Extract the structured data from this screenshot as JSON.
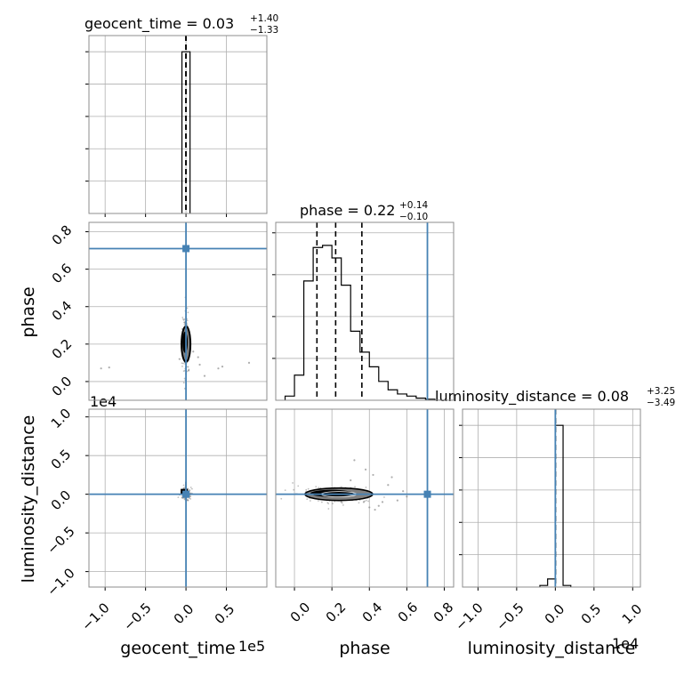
{
  "figure": {
    "style": {
      "panel_frame_color": "#8c8c8c",
      "grid_color": "#b0b0b0",
      "hist_color": "#000000",
      "truth_color": "#4682b4",
      "sample_color": "#8c8c8c",
      "contour_fill": "#808080"
    }
  },
  "chart_data": [
    {
      "type": "histogram",
      "panel": "geocent_time (1D marginal)",
      "title": {
        "prefix": "geocent_time = ",
        "median": "0.03",
        "plus": "+1.40",
        "minus": "−1.33"
      },
      "x_range": [
        -120000,
        100000
      ],
      "x_ticks": [
        -100000,
        -50000,
        0,
        50000
      ],
      "bin_edges": [
        -5000,
        5000
      ],
      "counts": [
        1.0
      ],
      "y_range": [
        0,
        1.1
      ],
      "y_ticks": [
        0.2,
        0.4,
        0.6,
        0.8,
        1.0
      ],
      "quantile_lines": [
        -1.33,
        0.03,
        1.4
      ],
      "grid": true
    },
    {
      "type": "scatter",
      "panel": "phase vs geocent_time",
      "x_range": [
        -120000,
        100000
      ],
      "y_range": [
        -0.1,
        0.85
      ],
      "y_axis": {
        "label": "phase",
        "ticks": [
          0.0,
          0.2,
          0.4,
          0.6,
          0.8
        ],
        "tick_labels": [
          "0.0",
          "0.2",
          "0.4",
          "0.6",
          "0.8"
        ]
      },
      "density_center": {
        "x": 0,
        "y": 0.2
      },
      "outliers": [
        [
          -105000,
          0.07
        ],
        [
          -95000,
          0.075
        ],
        [
          15000,
          0.13
        ],
        [
          17000,
          0.09
        ],
        [
          23000,
          0.03
        ],
        [
          40000,
          0.07
        ],
        [
          45000,
          0.08
        ],
        [
          78000,
          0.1
        ],
        [
          -8000,
          0.12
        ],
        [
          9000,
          0.16
        ]
      ],
      "truth": {
        "x": 0,
        "y": 0.71
      },
      "grid": true
    },
    {
      "type": "histogram",
      "panel": "phase (1D marginal)",
      "title": {
        "prefix": "phase = ",
        "median": "0.22",
        "plus": "+0.14",
        "minus": "−0.10"
      },
      "x_range": [
        -0.1,
        0.85
      ],
      "bin_edges": [
        -0.05,
        0.0,
        0.05,
        0.1,
        0.15,
        0.2,
        0.25,
        0.3,
        0.35,
        0.4,
        0.45,
        0.5,
        0.55,
        0.6,
        0.65,
        0.7,
        0.75,
        0.8
      ],
      "counts": [
        0.02,
        0.12,
        0.57,
        0.73,
        0.74,
        0.68,
        0.55,
        0.33,
        0.23,
        0.16,
        0.09,
        0.05,
        0.03,
        0.02,
        0.01,
        0.005,
        0.0
      ],
      "y_range": [
        0,
        0.85
      ],
      "y_ticks": [
        0.2,
        0.4,
        0.6,
        0.8
      ],
      "quantile_lines": [
        0.12,
        0.22,
        0.36
      ],
      "truth": {
        "x": 0.71
      },
      "grid": true
    },
    {
      "type": "scatter",
      "panel": "luminosity_distance vs geocent_time",
      "x_range": [
        -120000,
        100000
      ],
      "x_axis": {
        "label": "geocent_time",
        "offset_text": "1e5",
        "ticks": [
          -100000,
          -50000,
          0,
          50000
        ],
        "tick_labels": [
          "−1.0",
          "−0.5",
          "0.0",
          "0.5"
        ]
      },
      "y_range": [
        -12000,
        11000
      ],
      "y_axis": {
        "label": "luminosity_distance",
        "offset_text": "1e4",
        "ticks": [
          -10000,
          -5000,
          0,
          5000,
          10000
        ],
        "tick_labels": [
          "−1.0",
          "−0.5",
          "0.0",
          "0.5",
          "1.0"
        ]
      },
      "density_center": {
        "x": 0,
        "y": 0
      },
      "truth": {
        "x": 0,
        "y": 0
      },
      "grid": true
    },
    {
      "type": "scatter",
      "panel": "luminosity_distance vs phase",
      "x_range": [
        -0.1,
        0.85
      ],
      "x_axis": {
        "label": "phase",
        "ticks": [
          0.0,
          0.2,
          0.4,
          0.6,
          0.8
        ],
        "tick_labels": [
          "0.0",
          "0.2",
          "0.4",
          "0.6",
          "0.8"
        ]
      },
      "y_range": [
        -12000,
        11000
      ],
      "density_center": {
        "x": 0.18,
        "y": 0
      },
      "outliers": [
        [
          0.3,
          800
        ],
        [
          0.33,
          500
        ],
        [
          0.32,
          4400
        ],
        [
          0.3,
          1800
        ],
        [
          0.42,
          2500
        ],
        [
          0.43,
          -2000
        ],
        [
          0.45,
          -1500
        ],
        [
          0.4,
          -1700
        ],
        [
          0.47,
          -1000
        ],
        [
          0.37,
          -1000
        ],
        [
          0.55,
          -800
        ],
        [
          0.52,
          2200
        ],
        [
          0.5,
          1200
        ],
        [
          0.6,
          -300
        ],
        [
          0.58,
          400
        ],
        [
          0.38,
          3200
        ],
        [
          0.25,
          -1000
        ]
      ],
      "truth": {
        "x": 0.71,
        "y": 0
      },
      "grid": true
    },
    {
      "type": "histogram",
      "panel": "luminosity_distance (1D marginal)",
      "title": {
        "prefix": "luminosity_distance = ",
        "median": "0.08",
        "plus": "+3.25",
        "minus": "−3.49"
      },
      "x_range": [
        -12000,
        11000
      ],
      "x_axis": {
        "label": "luminosity_distance",
        "offset_text": "1e4",
        "ticks": [
          -10000,
          -5000,
          0,
          5000,
          10000
        ],
        "tick_labels": [
          "−1.0",
          "−0.5",
          "0.0",
          "0.5",
          "1.0"
        ]
      },
      "bin_edges": [
        -2000,
        -1000,
        0,
        1000,
        2000
      ],
      "counts": [
        0.01,
        0.05,
        1.0,
        0.01
      ],
      "y_range": [
        0,
        1.1
      ],
      "y_ticks": [
        0.2,
        0.4,
        0.6,
        0.8,
        1.0
      ],
      "quantile_lines": [
        -3.49,
        0.08,
        3.25
      ],
      "truth": {
        "x": 0
      },
      "grid": true
    }
  ]
}
